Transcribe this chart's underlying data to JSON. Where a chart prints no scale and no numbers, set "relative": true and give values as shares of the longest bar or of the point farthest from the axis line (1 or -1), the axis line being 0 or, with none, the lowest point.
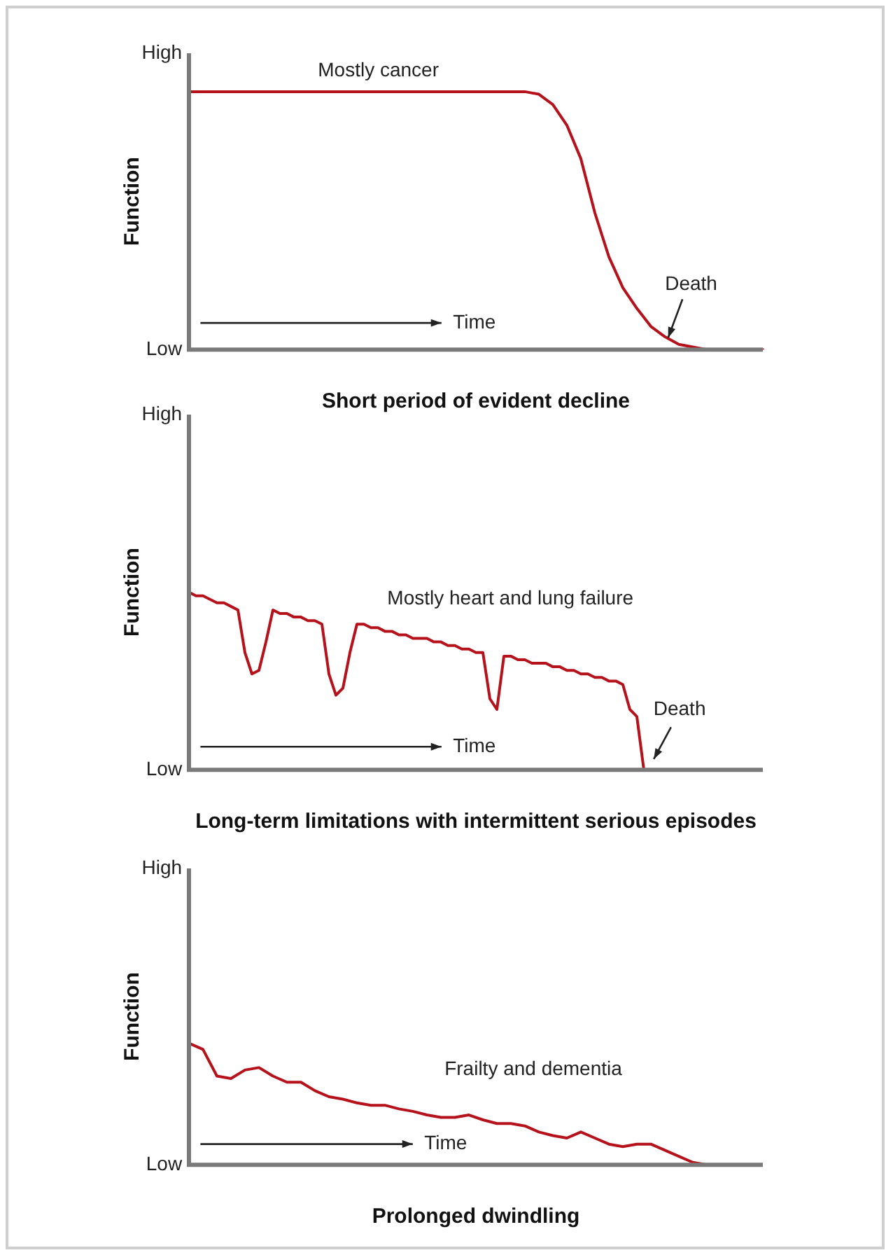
{
  "chart_data": [
    {
      "type": "line",
      "relative": true,
      "title": "Short period of evident decline",
      "ylabel": "Function",
      "annotations": [
        "High",
        "Low",
        "Mostly cancer",
        "Time",
        "Death"
      ],
      "legend": false,
      "marker": "none",
      "categories": [
        null,
        null,
        null,
        null,
        null,
        null,
        null,
        null,
        null,
        null,
        null,
        null,
        null,
        null,
        null,
        null,
        null,
        null,
        null,
        null,
        null,
        null,
        null,
        null,
        null,
        null,
        null,
        null,
        null,
        null,
        null,
        null,
        null,
        null,
        null,
        null,
        null,
        null,
        null,
        null,
        null,
        null
      ],
      "series": [
        {
          "color": "#b5121b",
          "values": [
            1,
            1,
            1,
            1,
            1,
            1,
            1,
            1,
            1,
            1,
            1,
            1,
            1,
            1,
            1,
            1,
            1,
            1,
            1,
            1,
            1,
            1,
            1,
            1,
            1,
            0.99,
            0.95,
            0.87,
            0.74,
            0.53,
            0.36,
            0.24,
            0.16,
            0.09,
            0.05,
            0.02,
            0.01,
            0,
            0,
            0,
            0,
            0
          ]
        }
      ]
    },
    {
      "type": "line",
      "relative": true,
      "title": "Long-term limitations with intermittent serious episodes",
      "ylabel": "Function",
      "annotations": [
        "High",
        "Low",
        "Mostly heart and lung failure",
        "Time",
        "Death"
      ],
      "legend": false,
      "marker": "none",
      "categories": [
        null,
        null,
        null,
        null,
        null,
        null,
        null,
        null,
        null,
        null,
        null,
        null,
        null,
        null,
        null,
        null,
        null,
        null,
        null,
        null,
        null,
        null,
        null,
        null,
        null,
        null,
        null,
        null,
        null,
        null,
        null,
        null,
        null,
        null,
        null,
        null,
        null,
        null,
        null,
        null,
        null,
        null,
        null,
        null,
        null,
        null,
        null,
        null,
        null,
        null,
        null,
        null,
        null,
        null,
        null,
        null,
        null,
        null,
        null,
        null,
        null,
        null,
        null,
        null,
        null,
        null,
        null,
        null,
        null,
        null,
        null,
        null,
        null,
        null,
        null,
        null,
        null,
        null,
        null,
        null,
        null,
        null,
        null
      ],
      "series": [
        {
          "color": "#b5121b",
          "values": [
            1,
            0.98,
            0.98,
            0.96,
            0.94,
            0.94,
            0.92,
            0.9,
            0.66,
            0.54,
            0.56,
            0.72,
            0.9,
            0.88,
            0.88,
            0.86,
            0.86,
            0.84,
            0.84,
            0.82,
            0.54,
            0.42,
            0.46,
            0.66,
            0.82,
            0.82,
            0.8,
            0.8,
            0.78,
            0.78,
            0.76,
            0.76,
            0.74,
            0.74,
            0.74,
            0.72,
            0.72,
            0.7,
            0.7,
            0.68,
            0.68,
            0.66,
            0.66,
            0.4,
            0.34,
            0.64,
            0.64,
            0.62,
            0.62,
            0.6,
            0.6,
            0.6,
            0.58,
            0.58,
            0.56,
            0.56,
            0.54,
            0.54,
            0.52,
            0.52,
            0.5,
            0.5,
            0.48,
            0.34,
            0.3,
            0,
            null,
            null,
            null,
            null,
            null,
            null,
            null,
            null,
            null,
            null,
            null,
            null,
            null,
            null,
            null,
            null,
            null
          ]
        }
      ]
    },
    {
      "type": "line",
      "relative": true,
      "title": "Prolonged dwindling",
      "ylabel": "Function",
      "annotations": [
        "High",
        "Low",
        "Frailty and dementia",
        "Time"
      ],
      "legend": false,
      "marker": "none",
      "categories": [
        null,
        null,
        null,
        null,
        null,
        null,
        null,
        null,
        null,
        null,
        null,
        null,
        null,
        null,
        null,
        null,
        null,
        null,
        null,
        null,
        null,
        null,
        null,
        null,
        null,
        null,
        null,
        null,
        null,
        null,
        null,
        null,
        null,
        null,
        null,
        null,
        null,
        null,
        null,
        null,
        null,
        null
      ],
      "series": [
        {
          "color": "#b5121b",
          "values": [
            1,
            0.95,
            0.73,
            0.71,
            0.78,
            0.8,
            0.73,
            0.68,
            0.68,
            0.61,
            0.56,
            0.54,
            0.51,
            0.49,
            0.49,
            0.46,
            0.44,
            0.41,
            0.39,
            0.39,
            0.41,
            0.37,
            0.34,
            0.34,
            0.32,
            0.27,
            0.24,
            0.22,
            0.27,
            0.22,
            0.17,
            0.15,
            0.17,
            0.17,
            0.12,
            0.07,
            0.02,
            0,
            null,
            null,
            null,
            null
          ]
        }
      ]
    }
  ]
}
